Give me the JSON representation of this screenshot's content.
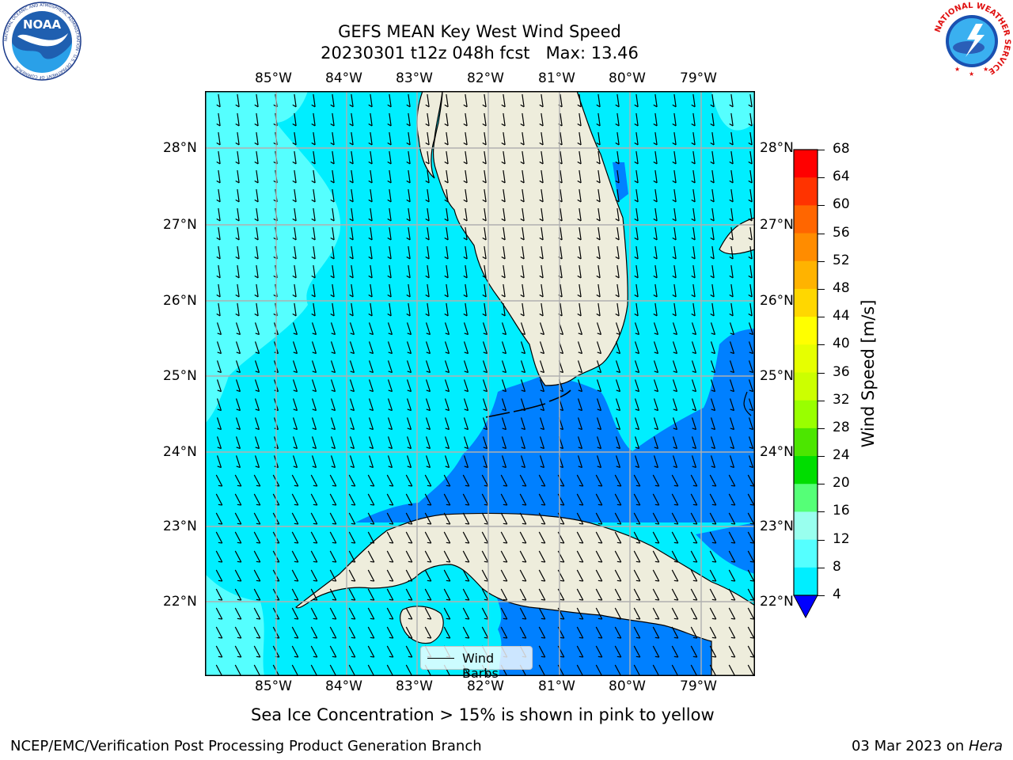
{
  "title_line1": "GEFS MEAN Key West Wind Speed",
  "title_line2": "20230301 t12z 048h fcst   Max: 13.46",
  "lon_labels": [
    "85°W",
    "84°W",
    "83°W",
    "82°W",
    "81°W",
    "80°W",
    "79°W"
  ],
  "lat_labels": [
    "28°N",
    "27°N",
    "26°N",
    "25°N",
    "24°N",
    "23°N",
    "22°N"
  ],
  "legend_label": "Wind Barbs",
  "colorbar": {
    "title": "Wind Speed [m/s]",
    "ticks": [
      "68",
      "64",
      "60",
      "56",
      "52",
      "48",
      "44",
      "40",
      "36",
      "32",
      "28",
      "24",
      "20",
      "16",
      "12",
      "8",
      "4"
    ],
    "colors": [
      "#ff0000",
      "#ff3300",
      "#ff6600",
      "#ff8c00",
      "#ffb300",
      "#ffd700",
      "#ffff00",
      "#e6ff00",
      "#ccff00",
      "#99ff00",
      "#4ce600",
      "#00dd00",
      "#55ff77",
      "#99ffee",
      "#55ffff",
      "#00eeff",
      "#0080ff"
    ],
    "extend_color": "#0000ff"
  },
  "colors": {
    "land": "#eeeddc",
    "ocean_light": "#55ffff",
    "ocean_mid": "#00eeff",
    "ocean_dark": "#0080ff",
    "grid": "#b0b0b0"
  },
  "caption": "Sea Ice Concentration > 15% is shown in pink to yellow",
  "footer_left": "NCEP/EMC/Verification Post Processing Product Generation Branch",
  "footer_right_date": "03 Mar 2023 on ",
  "footer_right_host": "Hera",
  "logos": {
    "noaa_text": "NOAA",
    "noaa_ring_text": "NATIONAL OCEANIC AND ATMOSPHERIC ADMINISTRATION · U.S. DEPARTMENT OF COMMERCE",
    "nws_ring_text": "NATIONAL WEATHER SERVICE"
  }
}
